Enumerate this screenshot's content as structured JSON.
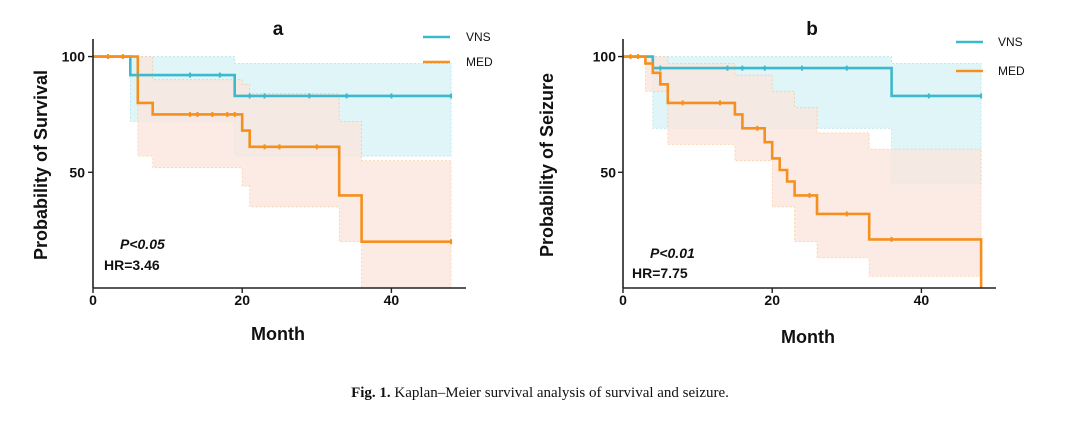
{
  "colors": {
    "VNS": "#3cb9cc",
    "MED": "#f5901e",
    "VNS_band": "#d6f1f6",
    "MED_band": "#fbe4dc"
  },
  "caption": {
    "label": "Fig. 1.",
    "text": "Kaplan–Meier survival analysis of survival and seizure."
  },
  "chart_data": [
    {
      "type": "line",
      "subtype": "kaplan-meier",
      "panel": "a",
      "title": "",
      "xlabel": "Month",
      "ylabel": "Probability of Survival",
      "xlim": [
        0,
        50
      ],
      "ylim": [
        0,
        105
      ],
      "xticks": [
        0,
        20,
        40
      ],
      "yticks": [
        50,
        100
      ],
      "legend": "top-right",
      "annotations": {
        "p": "P<0.05",
        "hr": "HR=3.46"
      },
      "series": [
        {
          "name": "VNS",
          "steps": [
            [
              0,
              100
            ],
            [
              5,
              92
            ],
            [
              19,
              83
            ],
            [
              48,
              83
            ]
          ],
          "censored": [
            [
              6,
              92
            ],
            [
              13,
              92
            ],
            [
              17,
              92
            ],
            [
              21,
              83
            ],
            [
              23,
              83
            ],
            [
              29,
              83
            ],
            [
              34,
              83
            ],
            [
              40,
              83
            ],
            [
              48,
              83
            ]
          ],
          "ci": {
            "x": [
              0,
              5,
              19,
              48
            ],
            "upper": [
              100,
              100,
              97,
              97
            ],
            "lower": [
              100,
              72,
              57,
              57
            ]
          }
        },
        {
          "name": "MED",
          "steps": [
            [
              0,
              100
            ],
            [
              6,
              80
            ],
            [
              8,
              75
            ],
            [
              20,
              68
            ],
            [
              21,
              61
            ],
            [
              33,
              40
            ],
            [
              36,
              20
            ],
            [
              48,
              20
            ]
          ],
          "censored": [
            [
              2,
              100
            ],
            [
              4,
              100
            ],
            [
              13,
              75
            ],
            [
              14,
              75
            ],
            [
              16,
              75
            ],
            [
              18,
              75
            ],
            [
              19,
              75
            ],
            [
              23,
              61
            ],
            [
              25,
              61
            ],
            [
              30,
              61
            ],
            [
              48,
              20
            ]
          ],
          "ci": {
            "x": [
              0,
              6,
              8,
              20,
              21,
              33,
              36,
              48
            ],
            "upper": [
              100,
              100,
              90,
              88,
              84,
              72,
              55,
              55
            ],
            "lower": [
              100,
              57,
              52,
              44,
              35,
              20,
              0,
              0
            ]
          }
        }
      ]
    },
    {
      "type": "line",
      "subtype": "kaplan-meier",
      "panel": "b",
      "title": "",
      "xlabel": "Month",
      "ylabel": "Probability of Seizure",
      "xlim": [
        0,
        50
      ],
      "ylim": [
        0,
        105
      ],
      "xticks": [
        0,
        20,
        40
      ],
      "yticks": [
        50,
        100
      ],
      "legend": "top-right",
      "annotations": {
        "p": "P<0.01",
        "hr": "HR=7.75"
      },
      "series": [
        {
          "name": "VNS",
          "steps": [
            [
              0,
              100
            ],
            [
              4,
              95
            ],
            [
              36,
              83
            ],
            [
              48,
              83
            ]
          ],
          "censored": [
            [
              5,
              95
            ],
            [
              14,
              95
            ],
            [
              16,
              95
            ],
            [
              19,
              95
            ],
            [
              24,
              95
            ],
            [
              30,
              95
            ],
            [
              41,
              83
            ],
            [
              48,
              83
            ]
          ],
          "ci": {
            "x": [
              0,
              4,
              36,
              48
            ],
            "upper": [
              100,
              100,
              97,
              97
            ],
            "lower": [
              100,
              69,
              45,
              45
            ]
          }
        },
        {
          "name": "MED",
          "steps": [
            [
              0,
              100
            ],
            [
              3,
              97
            ],
            [
              4,
              93
            ],
            [
              5,
              88
            ],
            [
              6,
              80
            ],
            [
              15,
              75
            ],
            [
              16,
              69
            ],
            [
              19,
              63
            ],
            [
              20,
              56
            ],
            [
              21,
              51
            ],
            [
              22,
              46
            ],
            [
              23,
              40
            ],
            [
              26,
              32
            ],
            [
              33,
              21
            ],
            [
              48,
              0
            ]
          ],
          "censored": [
            [
              1,
              100
            ],
            [
              2,
              100
            ],
            [
              8,
              80
            ],
            [
              13,
              80
            ],
            [
              18,
              69
            ],
            [
              25,
              40
            ],
            [
              30,
              32
            ],
            [
              36,
              21
            ]
          ],
          "ci": {
            "x": [
              0,
              3,
              6,
              15,
              20,
              23,
              26,
              33,
              48
            ],
            "upper": [
              100,
              100,
              97,
              92,
              85,
              78,
              67,
              60,
              43
            ],
            "lower": [
              100,
              85,
              62,
              55,
              35,
              20,
              13,
              5,
              0
            ]
          }
        }
      ]
    }
  ]
}
